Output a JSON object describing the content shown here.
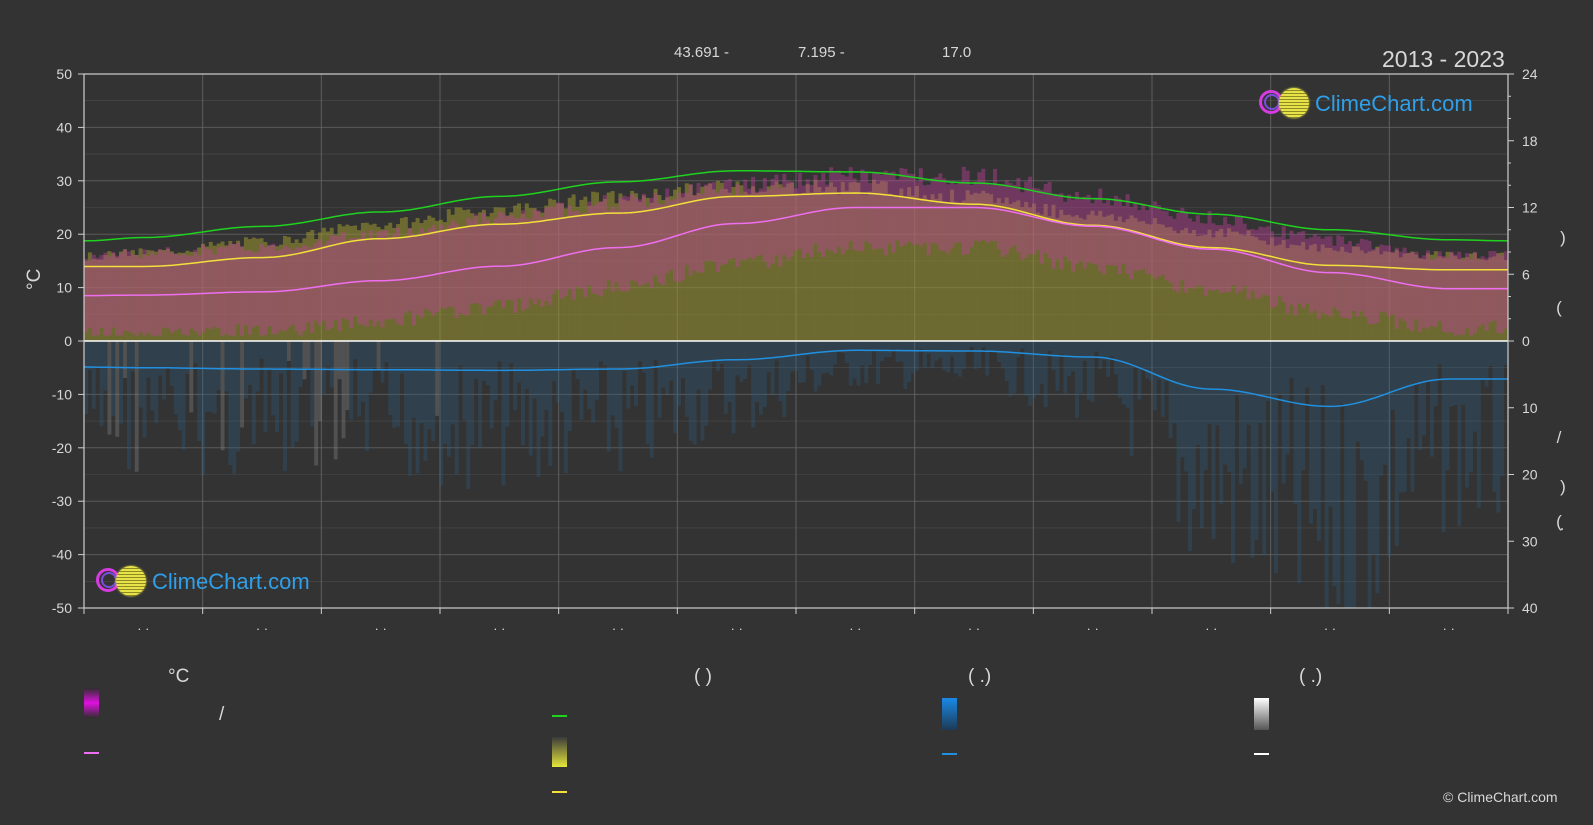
{
  "header": {
    "lat_text": "43.691 -",
    "lon_text": "7.195 -",
    "alt_text": "17.0",
    "year_range": "2013 - 2023"
  },
  "watermark": {
    "brand": "ClimeChart.com",
    "copyright": "© ClimeChart.com"
  },
  "legend": {
    "temp_unit_header": "°C",
    "sun_header": "(          )",
    "rain_header": "(   .)",
    "snow_header": "(   .)",
    "slash": "/"
  },
  "colors": {
    "background": "#333333",
    "max_daylight": "#1fd21f",
    "sunshine_line": "#f2e13a",
    "sunshine_band": "#9a9630",
    "temp_line": "#ee6ef0",
    "temp_band": "#c2409e",
    "rain_line": "#2190e0",
    "rain_bar": "#2a5f86",
    "snow_bar": "#8a8a8a",
    "grid": "#5e5e5e"
  },
  "chart_data": {
    "type": "area",
    "year_range": "2013 - 2023",
    "months": 12,
    "y_left": {
      "label": "°C",
      "range": [
        -50,
        50
      ],
      "ticks": [
        50,
        40,
        30,
        20,
        10,
        0,
        -10,
        -20,
        -30,
        -40,
        -50
      ]
    },
    "y_right_top": {
      "label": "",
      "range": [
        0,
        24
      ],
      "ticks": [
        24,
        18,
        12,
        6,
        0
      ]
    },
    "y_right_bottom": {
      "label": "",
      "range": [
        0,
        40
      ],
      "ticks": [
        0,
        10,
        20,
        30,
        40
      ]
    },
    "right_axis_glyphs": [
      ")",
      "(",
      "/",
      ")",
      "(",
      "."
    ],
    "x_tick_labels": [
      "· ·",
      "· ·",
      "· ·",
      "· ·",
      "· ·",
      "· ·",
      "· ·",
      "· ·",
      "· ·",
      "· ·",
      "· ·",
      "· ·"
    ],
    "series": [
      {
        "key": "daylight",
        "axis": "hours",
        "style": "line",
        "x": [
          0,
          0.5,
          1.5,
          2.5,
          3.5,
          4.5,
          5.5,
          6.5,
          7.5,
          8.5,
          9.5,
          10.5,
          11.5,
          12
        ],
        "values": [
          9.0,
          9.3,
          10.3,
          11.6,
          13.0,
          14.3,
          15.3,
          15.2,
          14.2,
          12.8,
          11.4,
          10.0,
          9.1,
          9.0
        ]
      },
      {
        "key": "sunshine_hours",
        "axis": "hours",
        "style": "line",
        "x": [
          0,
          0.5,
          1.5,
          2.5,
          3.5,
          4.5,
          5.5,
          6.5,
          7.5,
          8.5,
          9.5,
          10.5,
          11.5,
          12
        ],
        "values": [
          6.7,
          6.7,
          7.5,
          9.2,
          10.5,
          11.5,
          13.0,
          13.3,
          12.3,
          10.4,
          8.4,
          6.8,
          6.4,
          6.4
        ]
      },
      {
        "key": "temp_mean",
        "axis": "temp",
        "style": "line",
        "x": [
          0,
          0.5,
          1.5,
          2.5,
          3.5,
          4.5,
          5.5,
          6.5,
          7.5,
          8.5,
          9.5,
          10.5,
          11.5,
          12
        ],
        "values": [
          8.5,
          8.6,
          9.2,
          11.3,
          14.0,
          17.5,
          22.0,
          25.0,
          25.0,
          21.5,
          17.2,
          12.8,
          9.8,
          9.8
        ]
      },
      {
        "key": "temp_max_band",
        "axis": "temp",
        "style": "band",
        "x": [
          0,
          0.5,
          1.5,
          2.5,
          3.5,
          4.5,
          5.5,
          6.5,
          7.5,
          8.5,
          9.5,
          10.5,
          11.5,
          12
        ],
        "values": [
          16.0,
          16.5,
          17.5,
          20.0,
          23.0,
          26.0,
          29.0,
          31.0,
          31.0,
          27.0,
          23.0,
          19.0,
          16.0,
          16.0
        ]
      },
      {
        "key": "sunshine_band",
        "axis": "hours",
        "style": "band",
        "x": [
          0,
          0.5,
          1.5,
          2.5,
          3.5,
          4.5,
          5.5,
          6.5,
          7.5,
          8.5,
          9.5,
          10.5,
          11.5,
          12
        ],
        "values": [
          7.8,
          8.2,
          9.2,
          10.8,
          12.2,
          13.3,
          14.3,
          14.3,
          13.3,
          11.7,
          10.1,
          8.6,
          7.9,
          7.8
        ]
      },
      {
        "key": "precipitation",
        "axis": "mm",
        "style": "line",
        "x": [
          0,
          0.5,
          1.5,
          2.5,
          3.5,
          4.5,
          5.5,
          6.5,
          7.5,
          8.5,
          9.5,
          10.5,
          11.5,
          12
        ],
        "values": [
          3.9,
          4.0,
          4.2,
          4.3,
          4.4,
          4.2,
          2.8,
          1.4,
          1.5,
          2.4,
          7.2,
          9.8,
          5.7,
          5.7
        ]
      }
    ],
    "grid": true
  }
}
